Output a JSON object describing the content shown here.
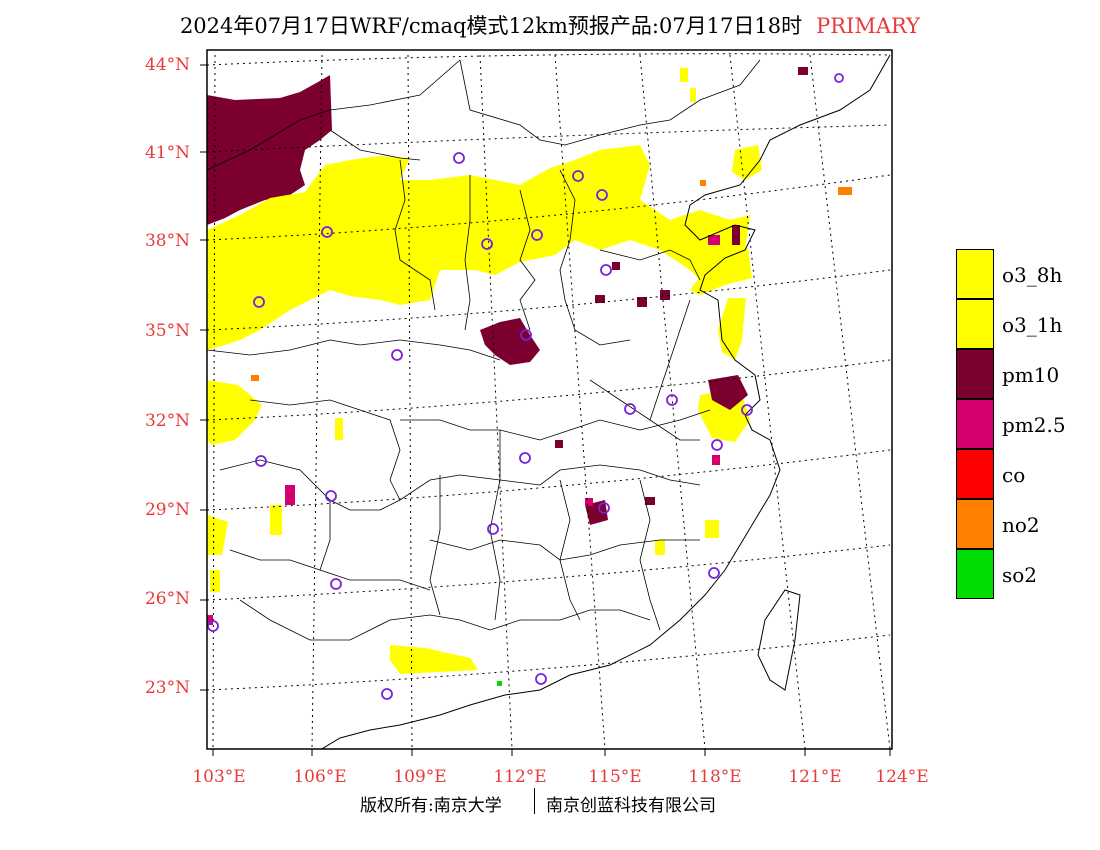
{
  "title": {
    "text": "2024年07月17日WRF/cmaq模式12km预报产品:07月17日18时",
    "tag": "PRIMARY"
  },
  "latitude_labels": [
    "44°N",
    "41°N",
    "38°N",
    "35°N",
    "32°N",
    "29°N",
    "26°N",
    "23°N"
  ],
  "longitude_labels": [
    "103°E",
    "106°E",
    "109°E",
    "112°E",
    "115°E",
    "118°E",
    "121°E",
    "124°E"
  ],
  "legend": [
    {
      "label": "o3_8h",
      "color": "#ffff00"
    },
    {
      "label": "o3_1h",
      "color": "#ffff00"
    },
    {
      "label": "pm10",
      "color": "#7b0030"
    },
    {
      "label": "pm2.5",
      "color": "#d4006f"
    },
    {
      "label": "co",
      "color": "#ff0000"
    },
    {
      "label": "no2",
      "color": "#ff7f00"
    },
    {
      "label": "so2",
      "color": "#00dd00"
    }
  ],
  "footer": {
    "left": "版权所有:南京大学",
    "right": "南京创蓝科技有限公司"
  }
}
